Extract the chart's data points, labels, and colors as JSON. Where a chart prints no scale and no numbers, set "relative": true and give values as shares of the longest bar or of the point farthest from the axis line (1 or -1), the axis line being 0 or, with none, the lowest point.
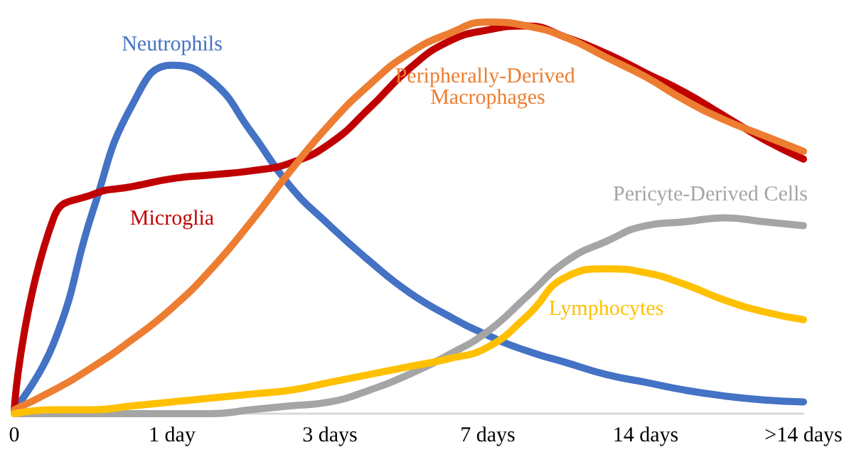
{
  "chart_data": {
    "type": "line",
    "relative": true,
    "categories": [
      "0",
      null,
      null,
      null,
      "1 day",
      null,
      null,
      null,
      "3 days",
      null,
      null,
      null,
      "7 days",
      null,
      null,
      null,
      "14 days",
      null,
      null,
      null,
      ">14 days"
    ],
    "grid": false,
    "legend": false,
    "series": [
      {
        "name": "Neutrophils",
        "color": "#4472c4",
        "values": [
          0.01,
          0.18,
          0.52,
          0.79,
          0.89,
          0.85,
          0.72,
          0.58,
          0.48,
          0.39,
          0.31,
          0.25,
          0.2,
          0.16,
          0.13,
          0.1,
          0.08,
          0.06,
          0.045,
          0.035,
          0.03
        ]
      },
      {
        "name": "Microglia",
        "color": "#c00000",
        "values": [
          0.01,
          0.5,
          0.56,
          0.58,
          0.6,
          0.61,
          0.62,
          0.64,
          0.69,
          0.78,
          0.88,
          0.95,
          0.98,
          0.99,
          0.96,
          0.92,
          0.87,
          0.82,
          0.76,
          0.7,
          0.65
        ]
      },
      {
        "name": "Peripherally-Derived Macrophages",
        "color": "#ed7d31",
        "values": [
          0.01,
          0.06,
          0.12,
          0.19,
          0.27,
          0.37,
          0.49,
          0.62,
          0.74,
          0.84,
          0.92,
          0.97,
          1.0,
          0.99,
          0.96,
          0.91,
          0.86,
          0.8,
          0.75,
          0.71,
          0.67
        ]
      },
      {
        "name": "Pericyte-Derived Cells",
        "color": "#a5a5a5",
        "values": [
          0,
          0,
          0,
          0,
          0,
          0,
          0.01,
          0.02,
          0.03,
          0.06,
          0.1,
          0.15,
          0.21,
          0.3,
          0.39,
          0.44,
          0.48,
          0.49,
          0.5,
          0.49,
          0.48
        ]
      },
      {
        "name": "Lymphocytes",
        "color": "#ffc000",
        "values": [
          0,
          0.01,
          0.01,
          0.02,
          0.03,
          0.04,
          0.05,
          0.06,
          0.08,
          0.1,
          0.12,
          0.14,
          0.17,
          0.25,
          0.35,
          0.37,
          0.36,
          0.33,
          0.29,
          0.26,
          0.24
        ]
      }
    ]
  }
}
